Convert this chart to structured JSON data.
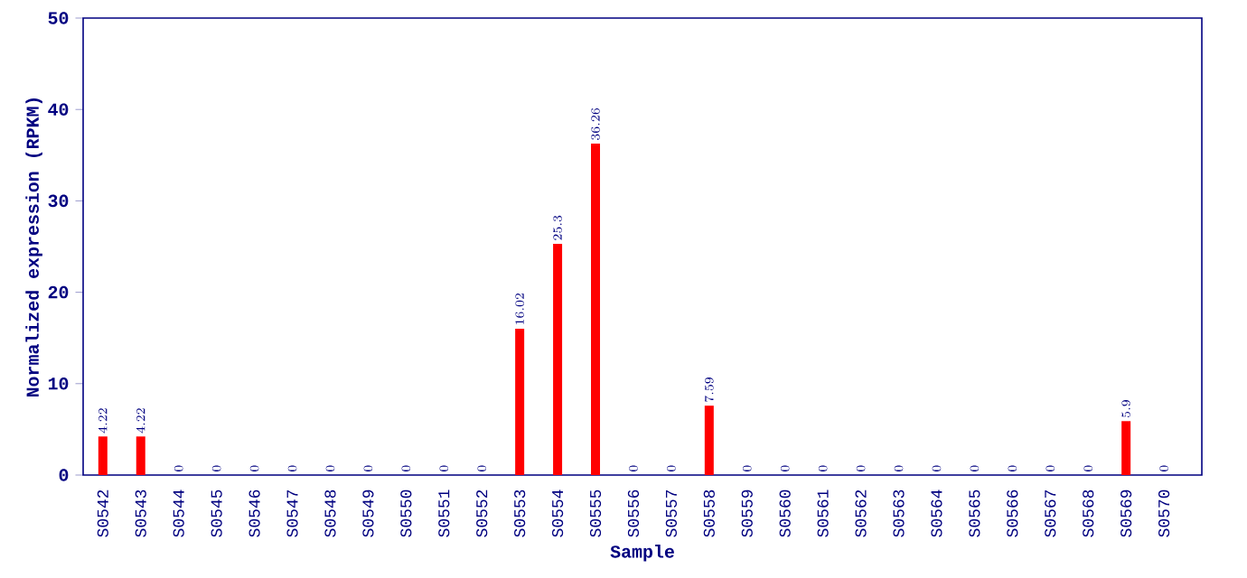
{
  "chart_data": {
    "type": "bar",
    "xlabel": "Sample",
    "ylabel": "Normalized expression (RPKM)",
    "categories": [
      "S0542",
      "S0543",
      "S0544",
      "S0545",
      "S0546",
      "S0547",
      "S0548",
      "S0549",
      "S0550",
      "S0551",
      "S0552",
      "S0553",
      "S0554",
      "S0555",
      "S0556",
      "S0557",
      "S0558",
      "S0559",
      "S0560",
      "S0561",
      "S0562",
      "S0563",
      "S0564",
      "S0565",
      "S0566",
      "S0567",
      "S0568",
      "S0569",
      "S0570"
    ],
    "values": [
      4.22,
      4.22,
      0,
      0,
      0,
      0,
      0,
      0,
      0,
      0,
      0,
      16.02,
      25.3,
      36.26,
      0,
      0,
      7.59,
      0,
      0,
      0,
      0,
      0,
      0,
      0,
      0,
      0,
      0,
      5.9,
      0
    ],
    "color": "#ff0000",
    "ylim": [
      0,
      50
    ],
    "yticks": [
      0,
      10,
      20,
      30,
      40,
      50
    ],
    "data_labels": true,
    "grid": false
  }
}
